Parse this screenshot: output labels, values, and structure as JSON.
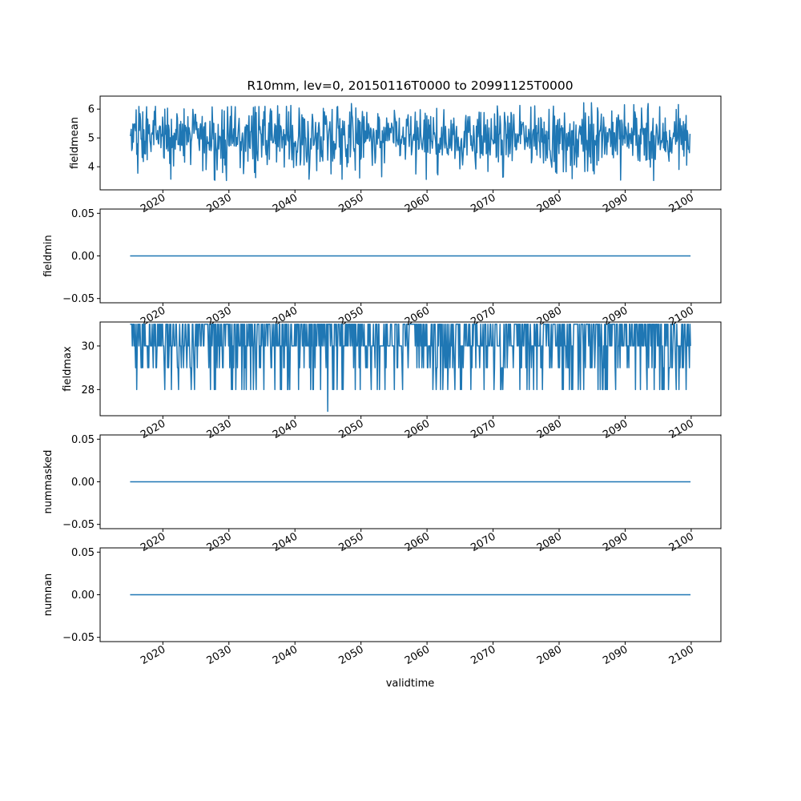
{
  "title": "R10mm, lev=0, 20150116T0000 to 20991125T0000",
  "xlabel": "validtime",
  "line_color": "#1f77b4",
  "x_ticks": [
    2020,
    2030,
    2040,
    2050,
    2060,
    2070,
    2080,
    2090,
    2100
  ],
  "chart_data": [
    {
      "type": "line",
      "ylabel": "fieldmean",
      "xlim": [
        2010.5,
        2104.5
      ],
      "ylim": [
        3.2,
        6.45
      ],
      "y_ticks": [
        4,
        5,
        6
      ],
      "y_tick_labels": [
        "4",
        "5",
        "6"
      ],
      "x_range": [
        2015.04,
        2099.9
      ],
      "pattern": "monthly noisy series oscillating between about 3.4 and 6.2, mean near 5.0",
      "y_min": 3.35,
      "y_max": 6.22
    },
    {
      "type": "line",
      "ylabel": "fieldmin",
      "xlim": [
        2010.5,
        2104.5
      ],
      "ylim": [
        -0.055,
        0.055
      ],
      "y_ticks": [
        -0.05,
        0.0,
        0.05
      ],
      "y_tick_labels": [
        "−0.05",
        "0.00",
        "0.05"
      ],
      "x_range": [
        2015.04,
        2099.9
      ],
      "constant_value": 0
    },
    {
      "type": "line",
      "ylabel": "fieldmax",
      "xlim": [
        2010.5,
        2104.5
      ],
      "ylim": [
        26.8,
        31.1
      ],
      "y_ticks": [
        28,
        30
      ],
      "y_tick_labels": [
        "28",
        "30"
      ],
      "x_range": [
        2015.04,
        2099.9
      ],
      "pattern": "monthly integer values mostly 30–31 with frequent dips to 29 and 28, one dip to 27 near 2045",
      "y_values_set": [
        27,
        28,
        29,
        30,
        31
      ]
    },
    {
      "type": "line",
      "ylabel": "nummasked",
      "xlim": [
        2010.5,
        2104.5
      ],
      "ylim": [
        -0.055,
        0.055
      ],
      "y_ticks": [
        -0.05,
        0.0,
        0.05
      ],
      "y_tick_labels": [
        "−0.05",
        "0.00",
        "0.05"
      ],
      "x_range": [
        2015.04,
        2099.9
      ],
      "constant_value": 0
    },
    {
      "type": "line",
      "ylabel": "numnan",
      "xlim": [
        2010.5,
        2104.5
      ],
      "ylim": [
        -0.055,
        0.055
      ],
      "y_ticks": [
        -0.05,
        0.0,
        0.05
      ],
      "y_tick_labels": [
        "−0.05",
        "0.00",
        "0.05"
      ],
      "x_range": [
        2015.04,
        2099.9
      ],
      "constant_value": 0
    }
  ]
}
